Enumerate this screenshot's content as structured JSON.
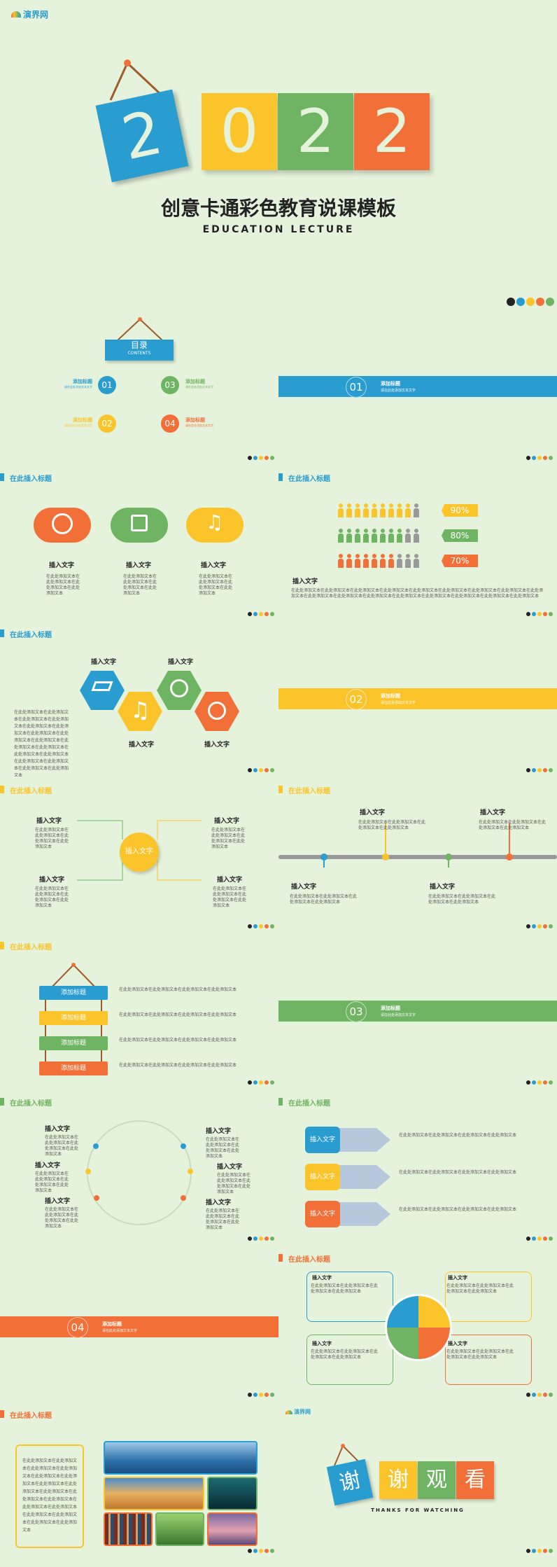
{
  "colors": {
    "blue": "#2a9dd0",
    "yellow": "#fbc42b",
    "green": "#6fb463",
    "orange": "#f36f38",
    "bg": "#e6f3dc"
  },
  "cover": {
    "logo": "演界网",
    "digits": [
      "2",
      "0",
      "2",
      "2"
    ],
    "title": "创意卡通彩色教育说课模板",
    "subtitle": "EDUCATION LECTURE"
  },
  "toc": {
    "heading": "目录",
    "heading_en": "CONTENTS",
    "items": [
      {
        "num": "01",
        "title": "添加标题",
        "desc": "请在此处添加文本文字"
      },
      {
        "num": "03",
        "title": "添加标题",
        "desc": "请在此处添加文本文字"
      },
      {
        "num": "02",
        "title": "添加标题",
        "desc": "请在此处添加文本文字"
      },
      {
        "num": "04",
        "title": "添加标题",
        "desc": "请在此处添加文本文字"
      }
    ]
  },
  "sections": [
    {
      "num": "01",
      "title": "添加标题",
      "desc": "请在此处添加文本文字"
    },
    {
      "num": "02",
      "title": "添加标题",
      "desc": "请在此处添加文本文字"
    },
    {
      "num": "03",
      "title": "添加标题",
      "desc": "请在此处添加文本文字"
    },
    {
      "num": "04",
      "title": "添加标题",
      "desc": "请在此处添加文本文字"
    }
  ],
  "slide_title": "在此插入标题",
  "insert_text": "插入文字",
  "body_short": "在此处添加文本在此处添加文本在此处添加文本在此处添加文本",
  "body_long": "在此处添加文本在此处添加文本在此处添加文本在此处添加文本在此处添加文本在此处添加文本在此处添加文本在此处添加文本在此处添加文本在此处添加文本在此处添加文本在此处添加文本在此处添加文本在此处添加文本在此处添加文本在此处添加文本在此处添加文本",
  "add_title": "添加标题",
  "percent": [
    {
      "value": 90,
      "label": "90%",
      "filled": 9,
      "total": 10,
      "color": "#fbc42b"
    },
    {
      "value": 80,
      "label": "80%",
      "filled": 8,
      "total": 10,
      "color": "#6fb463"
    },
    {
      "value": 70,
      "label": "70%",
      "filled": 7,
      "total": 10,
      "color": "#f36f38"
    }
  ],
  "thanks": {
    "chars": [
      "谢",
      "谢",
      "观",
      "看"
    ],
    "en": "THANKS FOR WATCHING",
    "logo": "演界网"
  }
}
